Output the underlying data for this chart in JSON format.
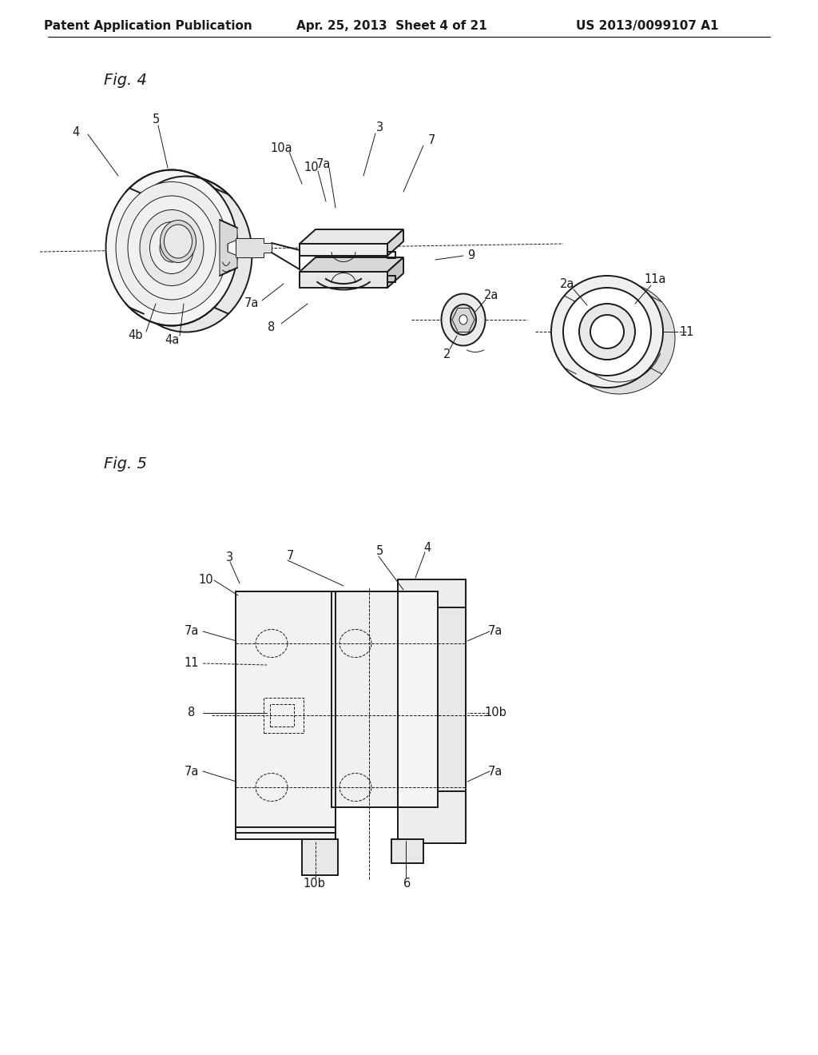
{
  "bg_color": "#ffffff",
  "header_left": "Patent Application Publication",
  "header_center": "Apr. 25, 2013  Sheet 4 of 21",
  "header_right": "US 2013/0099107 A1",
  "fig4_label": "Fig. 4",
  "fig5_label": "Fig. 5",
  "line_color": "#1a1a1a",
  "line_width": 1.4,
  "thin_line": 0.7,
  "annotation_fontsize": 10.5,
  "header_fontsize": 11
}
